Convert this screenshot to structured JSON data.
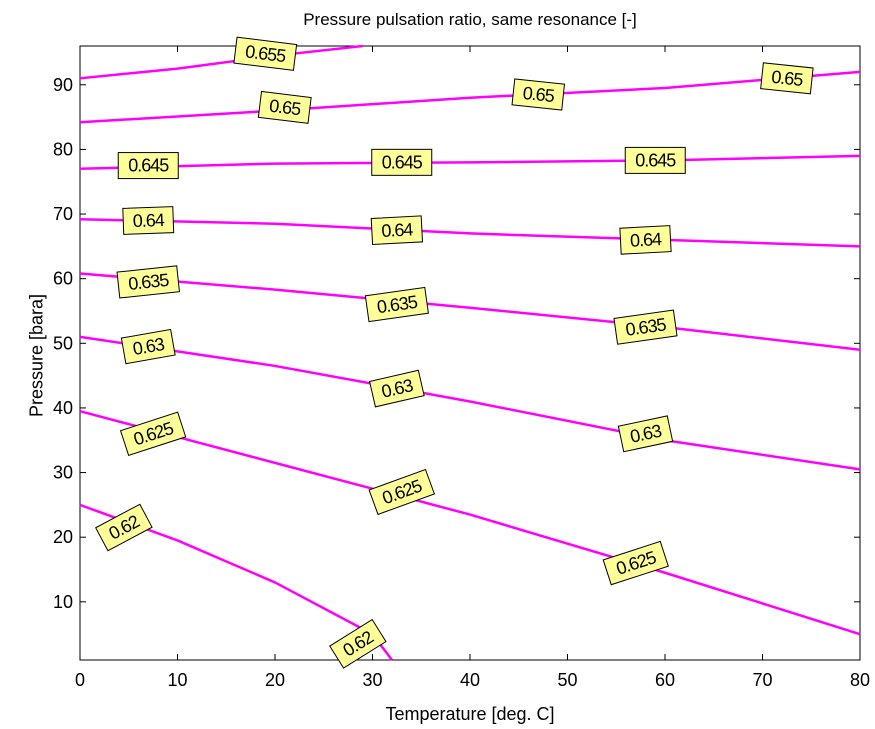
{
  "chart_data": {
    "type": "contour",
    "title": "Pressure pulsation ratio, same resonance [-]",
    "xlabel": "Temperature [deg. C]",
    "ylabel": "Pressure [bara]",
    "xlim": [
      0,
      80
    ],
    "ylim": [
      1,
      96
    ],
    "x_ticks": [
      0,
      10,
      20,
      30,
      40,
      50,
      60,
      70,
      80
    ],
    "y_ticks": [
      10,
      20,
      30,
      40,
      50,
      60,
      70,
      80,
      90
    ],
    "grid": false,
    "line_color": "#ff00ff",
    "label_fill": "#ffff99",
    "series": [
      {
        "level": "0.62",
        "points": [
          [
            0,
            25
          ],
          [
            10,
            19.5
          ],
          [
            20,
            13
          ],
          [
            30,
            5
          ],
          [
            32,
            1
          ]
        ],
        "labels": [
          [
            4.5,
            21.5,
            -28
          ],
          [
            28.5,
            3.5,
            -32
          ]
        ]
      },
      {
        "level": "0.625",
        "points": [
          [
            0,
            39.5
          ],
          [
            20,
            31.5
          ],
          [
            40,
            23.5
          ],
          [
            60,
            14.5
          ],
          [
            80,
            5
          ]
        ],
        "labels": [
          [
            7.5,
            36,
            -18
          ],
          [
            33,
            27,
            -20
          ],
          [
            57,
            16,
            -18
          ]
        ]
      },
      {
        "level": "0.63",
        "points": [
          [
            0,
            51
          ],
          [
            20,
            46.5
          ],
          [
            40,
            41
          ],
          [
            60,
            35
          ],
          [
            80,
            30.5
          ]
        ],
        "labels": [
          [
            7,
            49.5,
            -10
          ],
          [
            32.5,
            43,
            -13
          ],
          [
            58,
            36,
            -12
          ]
        ]
      },
      {
        "level": "0.635",
        "points": [
          [
            0,
            60.8
          ],
          [
            20,
            58.3
          ],
          [
            40,
            55.5
          ],
          [
            60,
            52.5
          ],
          [
            80,
            49
          ]
        ],
        "labels": [
          [
            7,
            59.5,
            -6
          ],
          [
            32.5,
            56,
            -8
          ],
          [
            58,
            52.5,
            -8
          ]
        ]
      },
      {
        "level": "0.64",
        "points": [
          [
            0,
            69.2
          ],
          [
            20,
            68.5
          ],
          [
            40,
            67
          ],
          [
            60,
            66
          ],
          [
            80,
            65
          ]
        ],
        "labels": [
          [
            7,
            69,
            -2
          ],
          [
            32.5,
            67.5,
            -3
          ],
          [
            58,
            66,
            -3
          ]
        ]
      },
      {
        "level": "0.645",
        "points": [
          [
            0,
            77
          ],
          [
            20,
            77.8
          ],
          [
            40,
            78
          ],
          [
            60,
            78.3
          ],
          [
            80,
            79
          ]
        ],
        "labels": [
          [
            7,
            77.5,
            0
          ],
          [
            33,
            78,
            0
          ],
          [
            59,
            78.3,
            0
          ]
        ]
      },
      {
        "level": "0.65",
        "points": [
          [
            0,
            84.2
          ],
          [
            20,
            86
          ],
          [
            40,
            88
          ],
          [
            60,
            89.5
          ],
          [
            80,
            92
          ]
        ],
        "labels": [
          [
            21,
            86.5,
            7
          ],
          [
            47,
            88.5,
            6
          ],
          [
            72.5,
            91,
            6
          ]
        ]
      },
      {
        "level": "0.655",
        "points": [
          [
            0,
            91
          ],
          [
            10,
            92.5
          ],
          [
            20,
            94.5
          ],
          [
            29,
            96
          ]
        ],
        "labels": [
          [
            19,
            94.8,
            7
          ]
        ]
      }
    ]
  }
}
